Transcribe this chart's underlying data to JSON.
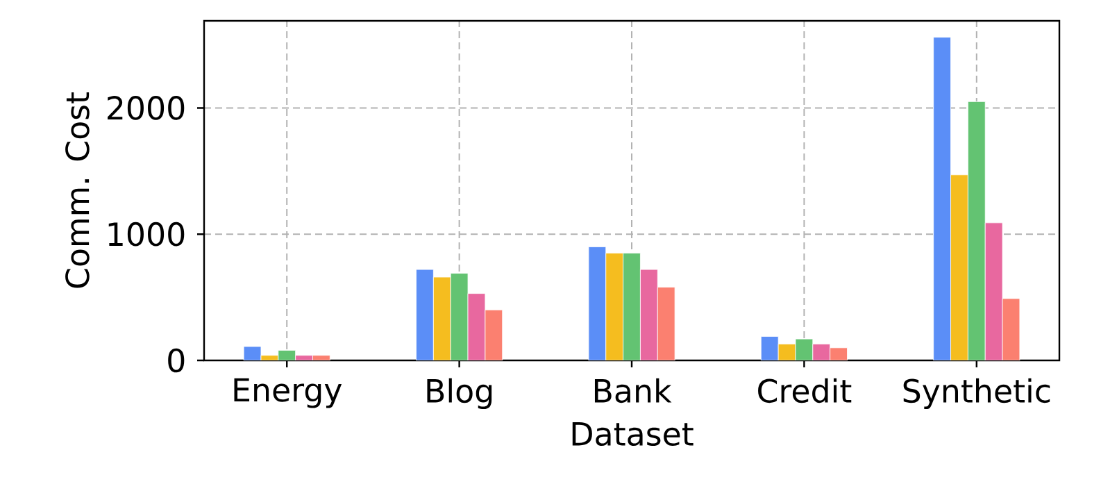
{
  "chart_data": {
    "type": "bar",
    "xlabel": "Dataset",
    "ylabel": "Comm. Cost",
    "categories": [
      "Energy",
      "Blog",
      "Bank",
      "Credit",
      "Synthetic"
    ],
    "series": [
      {
        "color": "#5b8ef7",
        "values": [
          110,
          720,
          900,
          190,
          2560
        ]
      },
      {
        "color": "#f5bd1f",
        "values": [
          40,
          660,
          850,
          130,
          1470
        ]
      },
      {
        "color": "#63c372",
        "values": [
          80,
          690,
          850,
          170,
          2050
        ]
      },
      {
        "color": "#e8689f",
        "values": [
          40,
          530,
          720,
          130,
          1090
        ]
      },
      {
        "color": "#fb8070",
        "values": [
          40,
          400,
          580,
          100,
          490
        ]
      }
    ],
    "ylim": [
      0,
      2690
    ],
    "yticks": [
      0,
      1000,
      2000
    ],
    "grid": true
  }
}
